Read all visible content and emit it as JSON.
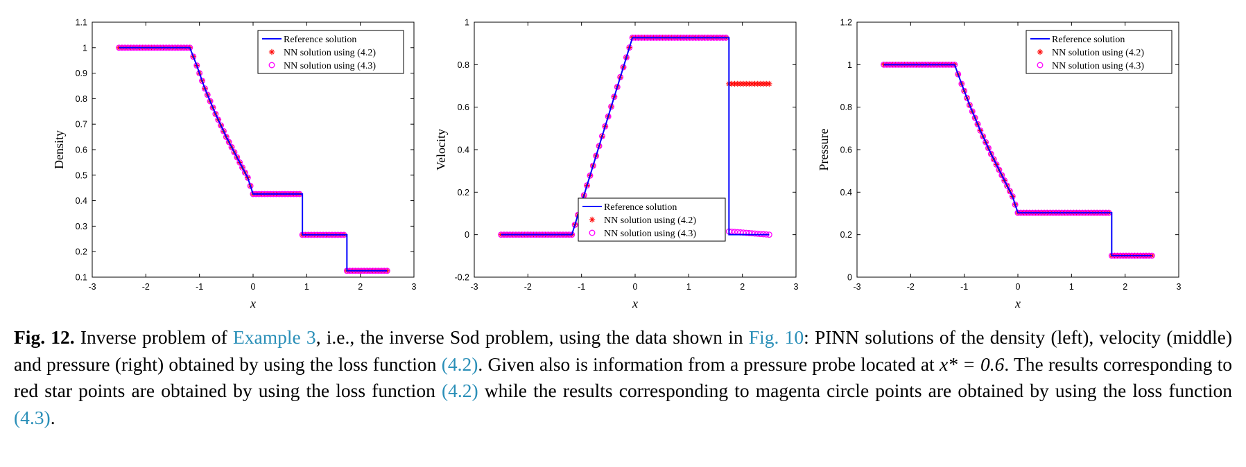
{
  "legend_labels": {
    "reference": "Reference  solution",
    "nn42": "NN  solution using  (4.2)",
    "nn43": "NN  solution using  (4.3)"
  },
  "colors": {
    "reference": "#0000ff",
    "nn42": "#ff0000",
    "nn43": "#ff00ff",
    "link": "#2a8fb8"
  },
  "chart_data": [
    {
      "type": "line",
      "xlabel": "x",
      "ylabel": "Density",
      "xlim": [
        -3,
        3
      ],
      "ylim": [
        0.1,
        1.1
      ],
      "xticks": [
        -3,
        -2,
        -1,
        0,
        1,
        2,
        3
      ],
      "xtick_labels": [
        "-3",
        "-2",
        "-1",
        "0",
        "1",
        "2",
        "3"
      ],
      "yticks": [
        0.1,
        0.2,
        0.3,
        0.4,
        0.5,
        0.6,
        0.7,
        0.8,
        0.9,
        1.0,
        1.1
      ],
      "ytick_labels": [
        "0.1",
        "0.2",
        "0.3",
        "0.4",
        "0.5",
        "0.6",
        "0.7",
        "0.8",
        "0.9",
        "1",
        "1.1"
      ],
      "legend_position": "top-right",
      "series": [
        {
          "name": "Reference  solution",
          "marker": "line",
          "x": [
            -2.5,
            -1.18,
            -1.05,
            -0.9,
            -0.7,
            -0.5,
            -0.3,
            -0.1,
            0.0,
            0.92,
            0.92,
            1.75,
            1.75,
            2.5
          ],
          "y": [
            1.0,
            1.0,
            0.93,
            0.84,
            0.74,
            0.65,
            0.57,
            0.49,
            0.426,
            0.426,
            0.266,
            0.266,
            0.125,
            0.125
          ]
        },
        {
          "name": "NN  solution using  (4.2)",
          "marker": "star",
          "x": [
            -2.5,
            -1.18,
            -1.05,
            -0.9,
            -0.7,
            -0.5,
            -0.3,
            -0.1,
            0.0,
            0.92,
            0.92,
            1.75,
            1.75,
            2.5
          ],
          "y": [
            1.0,
            1.0,
            0.93,
            0.84,
            0.74,
            0.65,
            0.57,
            0.49,
            0.426,
            0.426,
            0.266,
            0.266,
            0.125,
            0.125
          ]
        },
        {
          "name": "NN  solution using  (4.3)",
          "marker": "circle",
          "x": [
            -2.5,
            -1.18,
            -1.05,
            -0.9,
            -0.7,
            -0.5,
            -0.3,
            -0.1,
            0.0,
            0.92,
            0.92,
            1.75,
            1.75,
            2.5
          ],
          "y": [
            1.0,
            1.0,
            0.93,
            0.84,
            0.74,
            0.65,
            0.57,
            0.49,
            0.426,
            0.426,
            0.266,
            0.266,
            0.125,
            0.125
          ]
        }
      ]
    },
    {
      "type": "line",
      "xlabel": "x",
      "ylabel": "Velocity",
      "xlim": [
        -3,
        3
      ],
      "ylim": [
        -0.2,
        1.0
      ],
      "xticks": [
        -3,
        -2,
        -1,
        0,
        1,
        2,
        3
      ],
      "xtick_labels": [
        "-3",
        "-2",
        "-1",
        "0",
        "1",
        "2",
        "3"
      ],
      "yticks": [
        -0.2,
        0.0,
        0.2,
        0.4,
        0.6,
        0.8,
        1.0
      ],
      "ytick_labels": [
        "-0.2",
        "0",
        "0.2",
        "0.4",
        "0.6",
        "0.8",
        "1"
      ],
      "legend_position": "bottom-center",
      "series": [
        {
          "name": "Reference  solution",
          "marker": "line",
          "x": [
            -2.5,
            -1.18,
            -0.05,
            1.75,
            1.75,
            2.5
          ],
          "y": [
            0.0,
            0.0,
            0.927,
            0.927,
            0.0,
            0.0
          ]
        },
        {
          "name": "NN  solution using  (4.2)",
          "marker": "star",
          "x": [
            -2.5,
            -1.18,
            -0.05,
            1.75,
            1.75,
            2.5
          ],
          "y": [
            0.0,
            0.0,
            0.927,
            0.927,
            0.71,
            0.71
          ]
        },
        {
          "name": "NN  solution using  (4.3)",
          "marker": "circle",
          "x": [
            -2.5,
            -1.18,
            -0.05,
            1.75,
            1.75,
            2.5
          ],
          "y": [
            0.0,
            0.0,
            0.927,
            0.927,
            0.015,
            0.0
          ]
        }
      ]
    },
    {
      "type": "line",
      "xlabel": "x",
      "ylabel": "Pressure",
      "xlim": [
        -3,
        3
      ],
      "ylim": [
        0,
        1.2
      ],
      "xticks": [
        -3,
        -2,
        -1,
        0,
        1,
        2,
        3
      ],
      "xtick_labels": [
        "-3",
        "-2",
        "-1",
        "0",
        "1",
        "2",
        "3"
      ],
      "yticks": [
        0,
        0.2,
        0.4,
        0.6,
        0.8,
        1.0,
        1.2
      ],
      "ytick_labels": [
        "0",
        "0.2",
        "0.4",
        "0.6",
        "0.8",
        "1",
        "1.2"
      ],
      "legend_position": "top-right",
      "series": [
        {
          "name": "Reference  solution",
          "marker": "line",
          "x": [
            -2.5,
            -1.18,
            -1.05,
            -0.9,
            -0.7,
            -0.5,
            -0.3,
            -0.1,
            0.0,
            1.75,
            1.75,
            2.5
          ],
          "y": [
            1.0,
            1.0,
            0.91,
            0.81,
            0.69,
            0.58,
            0.48,
            0.38,
            0.303,
            0.303,
            0.101,
            0.101
          ]
        },
        {
          "name": "NN  solution using  (4.2)",
          "marker": "star",
          "x": [
            -2.5,
            -1.18,
            -1.05,
            -0.9,
            -0.7,
            -0.5,
            -0.3,
            -0.1,
            0.0,
            1.75,
            1.75,
            2.5
          ],
          "y": [
            1.0,
            1.0,
            0.91,
            0.81,
            0.69,
            0.58,
            0.48,
            0.38,
            0.303,
            0.303,
            0.101,
            0.101
          ]
        },
        {
          "name": "NN  solution using  (4.3)",
          "marker": "circle",
          "x": [
            -2.5,
            -1.18,
            -1.05,
            -0.9,
            -0.7,
            -0.5,
            -0.3,
            -0.1,
            0.0,
            1.75,
            1.75,
            2.5
          ],
          "y": [
            1.0,
            1.0,
            0.91,
            0.81,
            0.69,
            0.58,
            0.48,
            0.38,
            0.303,
            0.303,
            0.101,
            0.101
          ]
        }
      ]
    }
  ],
  "caption": {
    "fig_label": "Fig. 12.",
    "t1": " Inverse problem of ",
    "ref_example": "Example 3",
    "t2": ", i.e., the inverse Sod problem, using the data shown in ",
    "ref_fig": "Fig. 10",
    "t3": ": PINN solutions of the density (left), velocity (middle) and pressure (right) obtained by using the loss function ",
    "ref_42a": "(4.2)",
    "t4": ". Given also is information from a pressure probe located at ",
    "math": "x* = 0.6",
    "t5": ". The results corresponding to red star points are obtained by using the loss function ",
    "ref_42b": "(4.2)",
    "t6": " while the results corresponding to magenta circle points are obtained by using the loss function ",
    "ref_43": "(4.3)",
    "t7": "."
  }
}
